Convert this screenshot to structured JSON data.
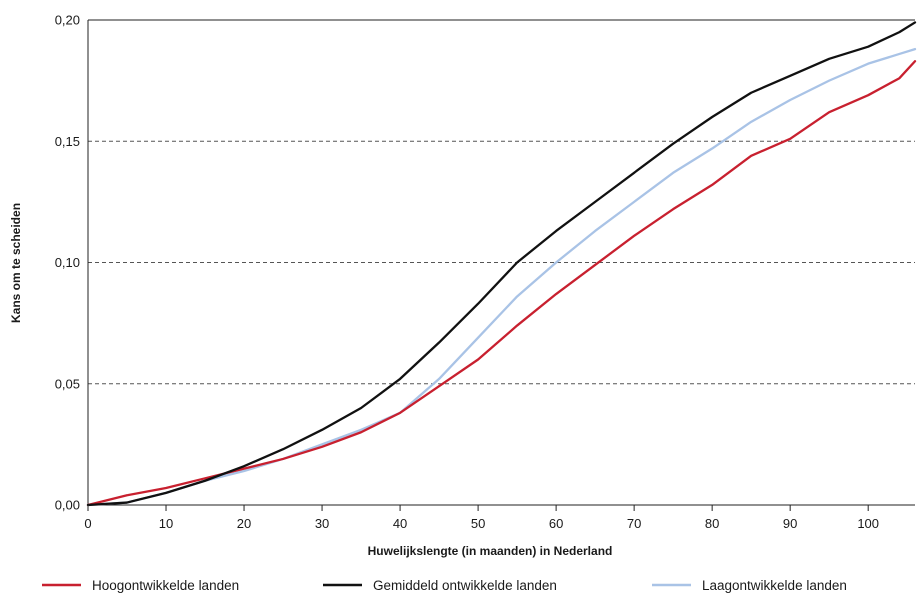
{
  "chart_data": {
    "type": "line",
    "title": "",
    "xlabel": "Huwelijkslengte (in maanden) in Nederland",
    "ylabel": "Kans om te scheiden",
    "xlim": [
      0,
      106
    ],
    "ylim": [
      0,
      0.2
    ],
    "x_ticks": [
      0,
      10,
      20,
      30,
      40,
      50,
      60,
      70,
      80,
      90,
      100
    ],
    "x_tick_labels": [
      "0",
      "10",
      "20",
      "30",
      "40",
      "50",
      "60",
      "70",
      "80",
      "90",
      "100"
    ],
    "y_ticks": [
      0,
      0.05,
      0.1,
      0.15,
      0.2
    ],
    "y_tick_labels": [
      "0,00",
      "0,05",
      "0,10",
      "0,15",
      "0,20"
    ],
    "grid": "horizontal dashed",
    "legend_position": "bottom",
    "x": [
      0,
      5,
      10,
      15,
      20,
      25,
      30,
      35,
      40,
      45,
      50,
      55,
      60,
      65,
      70,
      75,
      80,
      85,
      90,
      95,
      100,
      104,
      106
    ],
    "series": [
      {
        "name": "Hoogontwikkelde landen",
        "color": "#c8202f",
        "values": [
          0.0,
          0.004,
          0.007,
          0.011,
          0.015,
          0.019,
          0.024,
          0.03,
          0.038,
          0.049,
          0.06,
          0.074,
          0.087,
          0.099,
          0.111,
          0.122,
          0.132,
          0.144,
          0.151,
          0.162,
          0.169,
          0.176,
          0.183
        ]
      },
      {
        "name": "Gemiddeld ontwikkelde landen",
        "color": "#111111",
        "values": [
          0.0,
          0.001,
          0.005,
          0.01,
          0.016,
          0.023,
          0.031,
          0.04,
          0.052,
          0.067,
          0.083,
          0.1,
          0.113,
          0.125,
          0.137,
          0.149,
          0.16,
          0.17,
          0.177,
          0.184,
          0.189,
          0.195,
          0.199
        ]
      },
      {
        "name": "Laagontwikkelde landen",
        "color": "#a9c3e6",
        "values": [
          0.0,
          0.001,
          0.005,
          0.01,
          0.014,
          0.019,
          0.025,
          0.031,
          0.038,
          0.052,
          0.069,
          0.086,
          0.1,
          0.113,
          0.125,
          0.137,
          0.147,
          0.158,
          0.167,
          0.175,
          0.182,
          0.186,
          0.188
        ]
      }
    ]
  }
}
